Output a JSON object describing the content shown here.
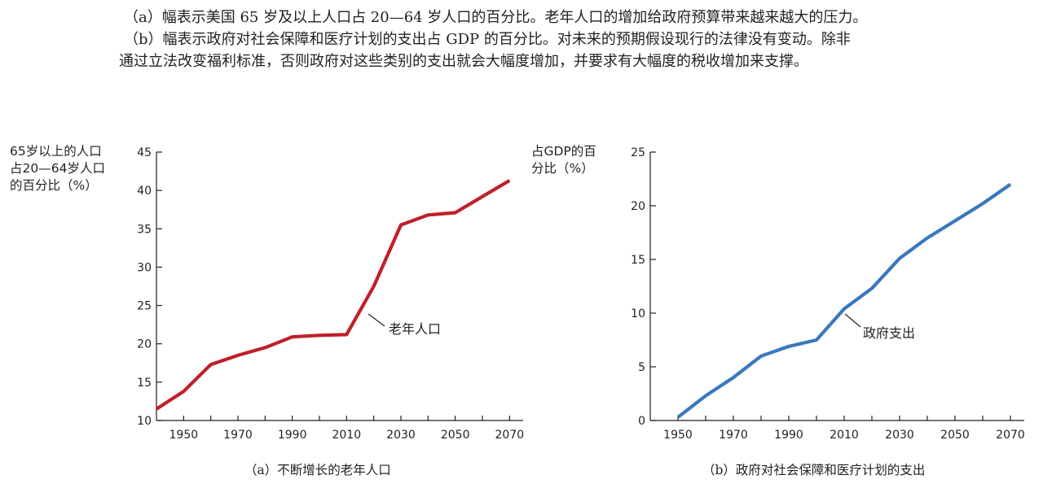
{
  "text": {
    "line1": "（a）幅表示美国 65 岁及以上人口占 20—64 岁人口的百分比。老年人口的增加给政府预算带来越来越大的压力。",
    "line2": "（b）幅表示政府对社会保障和医疗计划的支出占 GDP 的百分比。对未来的预期假设现行的法律没有变动。除非",
    "line3": "通过立法改变福利标准，否则政府对这些类别的支出就会大幅度增加，并要求有大幅度的税收增加来支撑。"
  },
  "chart_data": [
    {
      "type": "line",
      "ylabel": "65岁以上的人口\n占20—64岁人口\n的百分比（%）",
      "xlabel": "",
      "caption": "（a）不断增长的老年人口",
      "x_ticks": [
        1950,
        1970,
        1990,
        2010,
        2030,
        2050,
        2070
      ],
      "y_ticks": [
        10,
        15,
        20,
        25,
        30,
        35,
        40,
        45
      ],
      "xlim": [
        1940,
        2075
      ],
      "ylim": [
        10,
        45
      ],
      "color": "#c0202a",
      "series": [
        {
          "name": "老年人口",
          "x": [
            1940,
            1950,
            1960,
            1970,
            1980,
            1990,
            2000,
            2010,
            2020,
            2030,
            2040,
            2050,
            2060,
            2070
          ],
          "y": [
            11.5,
            13.8,
            17.3,
            18.5,
            19.5,
            20.9,
            21.1,
            21.2,
            27.5,
            35.5,
            36.8,
            37.1,
            39.2,
            41.3
          ]
        }
      ],
      "annotation": "老年人口"
    },
    {
      "type": "line",
      "ylabel": "占GDP的百\n分比（%）",
      "xlabel": "",
      "caption": "（b）政府对社会保障和医疗计划的支出",
      "x_ticks": [
        1950,
        1970,
        1990,
        2010,
        2030,
        2050,
        2070
      ],
      "y_ticks": [
        0,
        5,
        10,
        15,
        20,
        25
      ],
      "xlim": [
        1940,
        2075
      ],
      "ylim": [
        0,
        25
      ],
      "color": "#3a78be",
      "series": [
        {
          "name": "政府支出",
          "x": [
            1950,
            1960,
            1970,
            1980,
            1990,
            2000,
            2010,
            2020,
            2030,
            2040,
            2050,
            2060,
            2070
          ],
          "y": [
            0.3,
            2.3,
            4.0,
            6.0,
            6.9,
            7.5,
            10.4,
            12.3,
            15.1,
            17.0,
            18.6,
            20.2,
            22.0
          ]
        }
      ],
      "annotation": "政府支出"
    }
  ]
}
